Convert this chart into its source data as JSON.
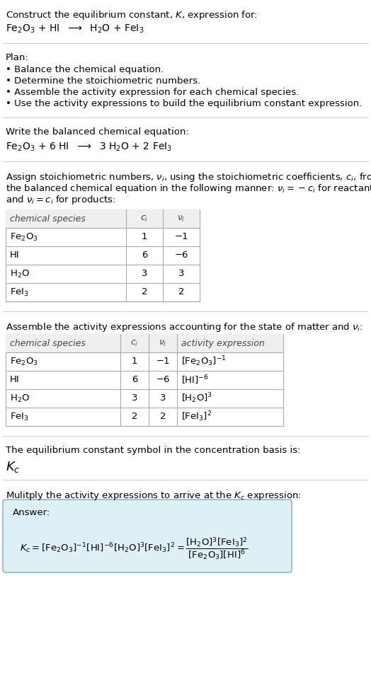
{
  "bg_color": "#ffffff",
  "title_line1": "Construct the equilibrium constant, $K$, expression for:",
  "title_line2": "Fe$_2$O$_3$ + HI  $\\longrightarrow$  H$_2$O + FeI$_3$",
  "plan_header": "Plan:",
  "plan_items": [
    "• Balance the chemical equation.",
    "• Determine the stoichiometric numbers.",
    "• Assemble the activity expression for each chemical species.",
    "• Use the activity expressions to build the equilibrium constant expression."
  ],
  "balanced_header": "Write the balanced chemical equation:",
  "balanced_eq": "Fe$_2$O$_3$ + 6 HI  $\\longrightarrow$  3 H$_2$O + 2 FeI$_3$",
  "stoich_intro": "Assign stoichiometric numbers, $\\nu_i$, using the stoichiometric coefficients, $c_i$, from\nthe balanced chemical equation in the following manner: $\\nu_i = -c_i$ for reactants\nand $\\nu_i = c_i$ for products:",
  "table1_headers": [
    "chemical species",
    "$c_i$",
    "$\\nu_i$"
  ],
  "table1_data": [
    [
      "Fe$_2$O$_3$",
      "1",
      "−1"
    ],
    [
      "HI",
      "6",
      "−6"
    ],
    [
      "H$_2$O",
      "3",
      "3"
    ],
    [
      "FeI$_3$",
      "2",
      "2"
    ]
  ],
  "activity_header": "Assemble the activity expressions accounting for the state of matter and $\\nu_i$:",
  "table2_headers": [
    "chemical species",
    "$c_i$",
    "$\\nu_i$",
    "activity expression"
  ],
  "table2_data": [
    [
      "Fe$_2$O$_3$",
      "1",
      "−1",
      "[Fe$_2$O$_3$]$^{-1}$"
    ],
    [
      "HI",
      "6",
      "−6",
      "[HI]$^{-6}$"
    ],
    [
      "H$_2$O",
      "3",
      "3",
      "[H$_2$O]$^{3}$"
    ],
    [
      "FeI$_3$",
      "2",
      "2",
      "[FeI$_3$]$^{2}$"
    ]
  ],
  "kc_text": "The equilibrium constant symbol in the concentration basis is:",
  "kc_symbol": "$K_c$",
  "multiply_text": "Mulitply the activity expressions to arrive at the $K_c$ expression:",
  "answer_label": "Answer:",
  "answer_box_color": "#dff0f7",
  "answer_box_edge": "#88bbd0",
  "section_line_color": "#cccccc"
}
